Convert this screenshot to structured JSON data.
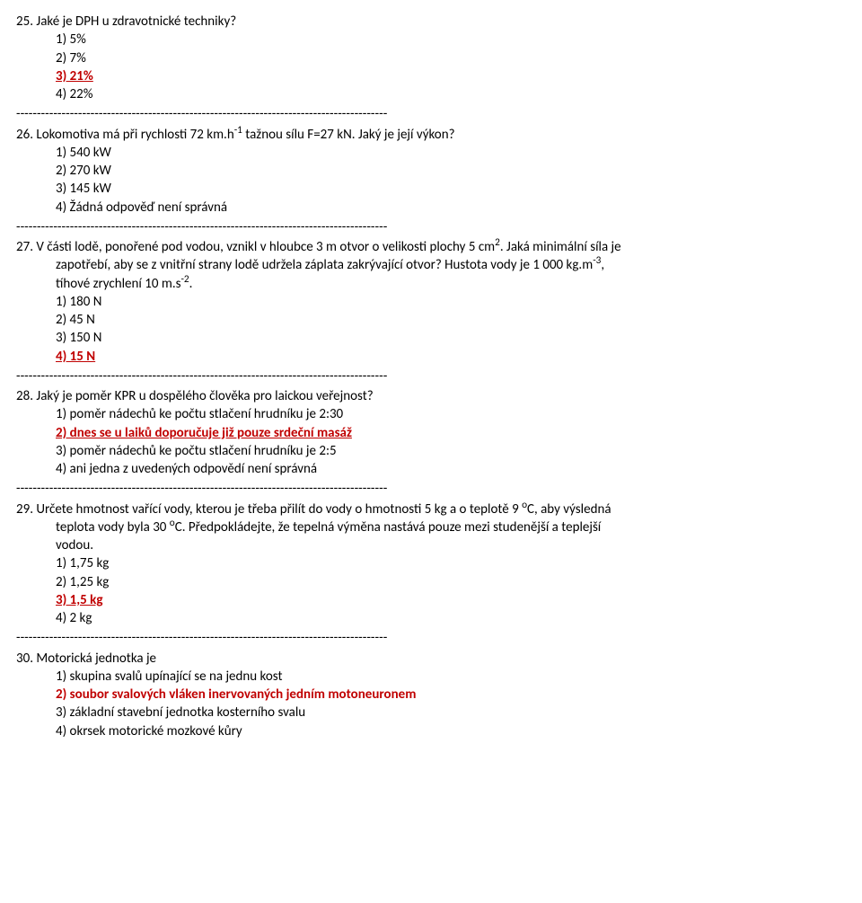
{
  "separator": "------------------------------------------------------------------------------------------",
  "q25": {
    "num": "25.",
    "text": "Jaké je DPH u zdravotnické techniky?",
    "opts": [
      "1) 5%",
      "2) 7%",
      "3) 21%",
      "4) 22%"
    ],
    "correct_index": 2
  },
  "q26": {
    "num": "26.",
    "text_pre": "Lokomotiva má při rychlosti 72 km.h",
    "text_sup1": "-1",
    "text_post": " tažnou sílu F=27 kN. Jaký je její výkon?",
    "opts": [
      "1) 540 kW",
      "2) 270 kW",
      "3) 145 kW",
      "4) Žádná odpověď není správná"
    ]
  },
  "q27": {
    "num": "27.",
    "line1_pre": "V části lodě, ponořené pod vodou, vznikl v hloubce 3 m otvor o velikosti plochy 5 cm",
    "line1_sup": "2",
    "line1_post": ". Jaká minimální síla je",
    "line2_pre": "zapotřebí, aby se z vnitřní strany lodě udržela záplata zakrývající otvor? Hustota vody je 1 000 kg.m",
    "line2_sup": "-3",
    "line2_post": ",",
    "line3_pre": "tíhové zrychlení 10 m.s",
    "line3_sup": "-2",
    "line3_post": ".",
    "opts": [
      "1) 180 N",
      "2) 45 N",
      "3) 150 N",
      "4) 15 N"
    ],
    "correct_index": 3
  },
  "q28": {
    "num": "28.",
    "text": "Jaký je poměr KPR u dospělého člověka pro laickou veřejnost?",
    "opts": [
      "1) poměr nádechů ke počtu stlačení hrudníku je 2:30",
      "2) dnes se u laiků doporučuje již pouze srdeční masáž",
      "3) poměr nádechů ke počtu stlačení hrudníku je 2:5",
      "4) ani jedna z uvedených odpovědí není správná"
    ],
    "correct_index": 1
  },
  "q29": {
    "num": "29.",
    "line1_pre": "Určete hmotnost vařící vody, kterou je třeba přilít do vody o hmotnosti 5 kg a o teplotě 9 ",
    "line1_sup": "o",
    "line1_post": "C, aby výsledná",
    "line2_pre": "teplota vody byla 30 ",
    "line2_sup": "o",
    "line2_post": "C. Předpokládejte, že tepelná výměna nastává pouze mezi studenější a teplejší",
    "line3": "vodou.",
    "opts": [
      "1) 1,75 kg",
      "2) 1,25 kg",
      "3) 1,5 kg",
      "4) 2 kg"
    ],
    "correct_index": 2
  },
  "q30": {
    "num": "30.",
    "text": "Motorická jednotka je",
    "opts": [
      "1) skupina svalů upínající se na jednu kost",
      "2) soubor svalových vláken inervovaných jedním motoneuronem",
      "3) základní stavební jednotka kosterního svalu",
      "4) okrsek motorické mozkové kůry"
    ],
    "correct_index": 1
  }
}
